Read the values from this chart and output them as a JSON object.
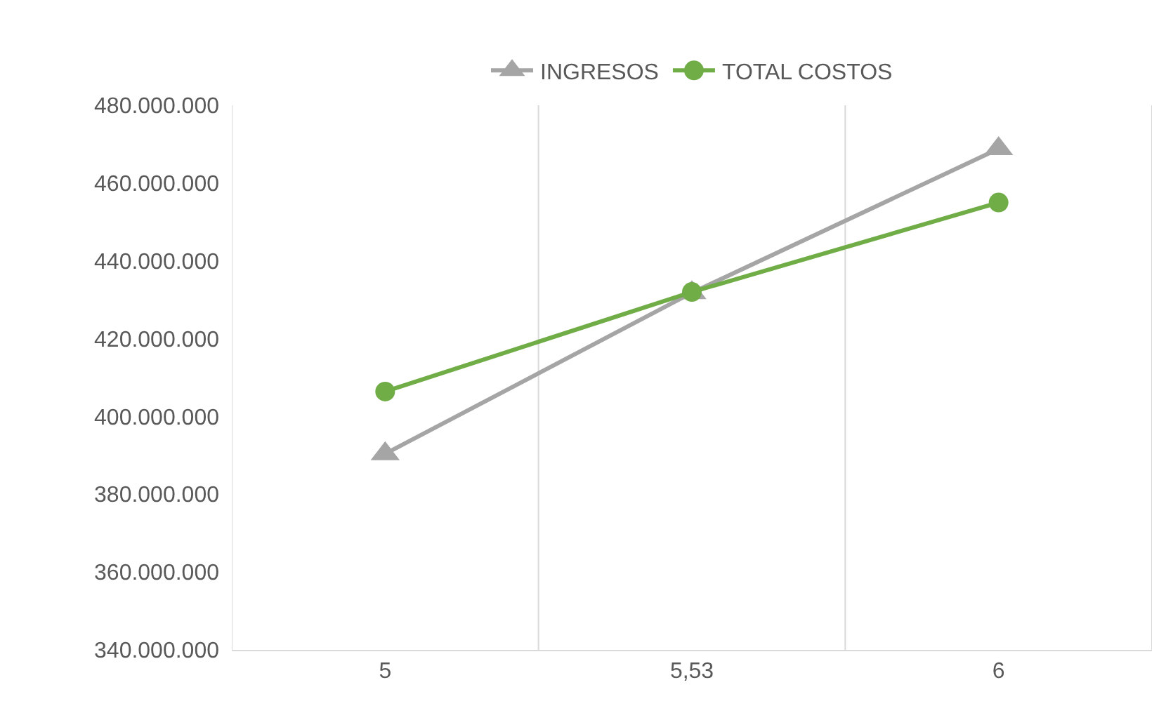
{
  "chart_data": {
    "type": "line",
    "categories": [
      "5",
      "5,53",
      "6"
    ],
    "series": [
      {
        "name": "INGRESOS",
        "color": "#a5a5a5",
        "marker": "triangle",
        "values": [
          390400000,
          431800000,
          468800000
        ]
      },
      {
        "name": "TOTAL COSTOS",
        "color": "#70ad47",
        "marker": "circle",
        "values": [
          406400000,
          432000000,
          455000000
        ]
      }
    ],
    "ylim": [
      340000000,
      480000000
    ],
    "yticks": [
      {
        "value": 340000000,
        "label": "340.000.000"
      },
      {
        "value": 360000000,
        "label": "360.000.000"
      },
      {
        "value": 380000000,
        "label": "380.000.000"
      },
      {
        "value": 400000000,
        "label": "400.000.000"
      },
      {
        "value": 420000000,
        "label": "420.000.000"
      },
      {
        "value": 440000000,
        "label": "440.000.000"
      },
      {
        "value": 460000000,
        "label": "460.000.000"
      },
      {
        "value": 480000000,
        "label": "480.000.000"
      }
    ],
    "grid": "x",
    "legend": "top",
    "line_style": "solid"
  }
}
